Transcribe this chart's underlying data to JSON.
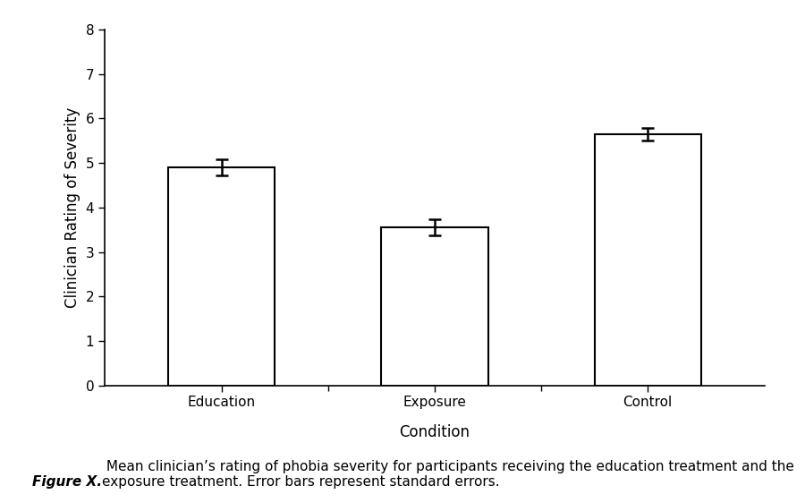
{
  "categories": [
    "Education",
    "Exposure",
    "Control"
  ],
  "values": [
    4.9,
    3.55,
    5.65
  ],
  "errors": [
    0.18,
    0.18,
    0.14
  ],
  "bar_color": "#ffffff",
  "bar_edgecolor": "#000000",
  "bar_width": 0.5,
  "bar_linewidth": 1.5,
  "ylabel": "Clinician Rating of Severity",
  "xlabel": "Condition",
  "ylim": [
    0,
    8
  ],
  "yticks": [
    0,
    1,
    2,
    3,
    4,
    5,
    6,
    7,
    8
  ],
  "caption_bold": "Figure X.",
  "caption_normal": " Mean clinician’s rating of phobia severity for participants receiving the education treatment and the\nexposure treatment. Error bars represent standard errors.",
  "caption_fontsize": 11,
  "axis_label_fontsize": 12,
  "tick_fontsize": 11,
  "errorbar_color": "#000000",
  "errorbar_linewidth": 1.8,
  "errorbar_capsize": 5,
  "errorbar_capthick": 1.8,
  "background_color": "#ffffff",
  "spine_linewidth": 1.2,
  "figsize": [
    9.0,
    5.52
  ],
  "dpi": 100
}
